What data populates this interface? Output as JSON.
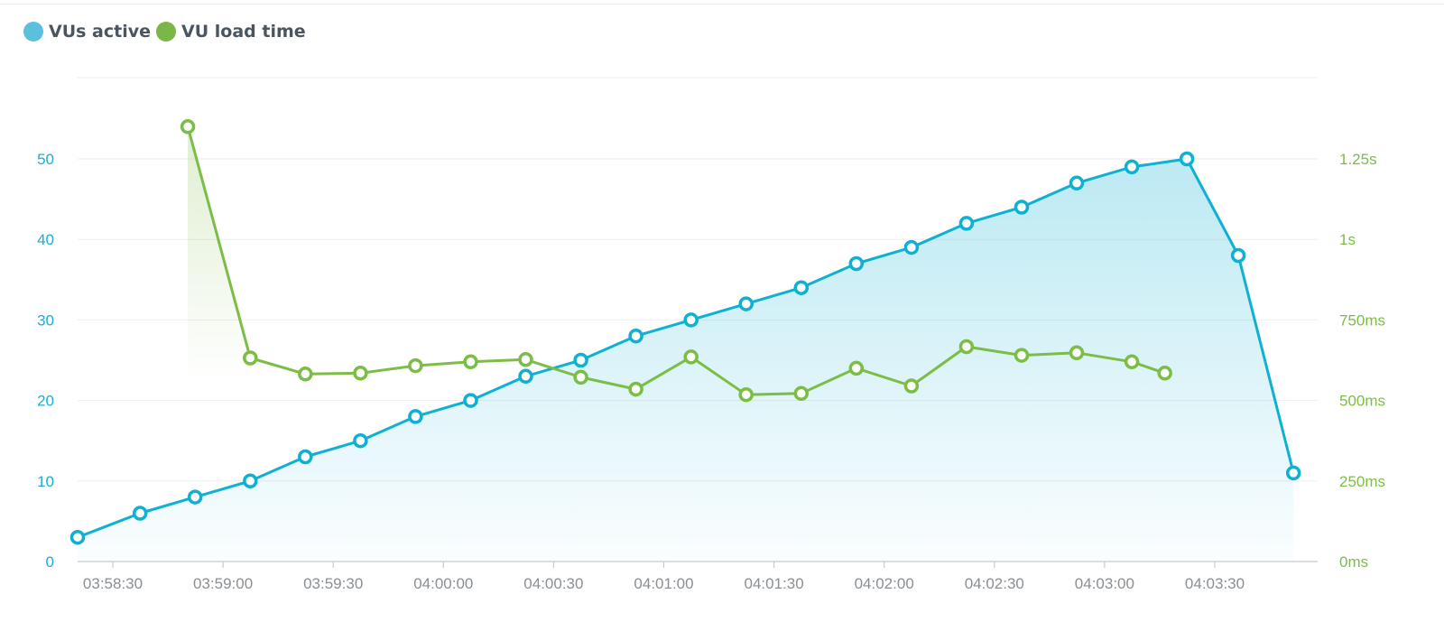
{
  "legend": {
    "items": [
      {
        "label": "VUs active",
        "color": "#5bc0de"
      },
      {
        "label": "VU load time",
        "color": "#7ab648"
      }
    ]
  },
  "colors": {
    "vus_line": "#0fb1d3",
    "load_line": "#7cbd46",
    "left_axis_text": "#1ab0d3",
    "right_axis_text": "#7cbd46",
    "x_axis_text": "#8a8f95",
    "grid": "#eeeeee"
  },
  "chart_data": {
    "type": "line",
    "title": "",
    "xlabel": "",
    "x_ticks": [
      "03:58:30",
      "03:59:00",
      "03:59:30",
      "04:00:00",
      "04:00:30",
      "04:01:00",
      "04:01:30",
      "04:02:00",
      "04:02:30",
      "04:03:00",
      "04:03:30"
    ],
    "y_left": {
      "ticks": [
        "0",
        "10",
        "20",
        "30",
        "40",
        "50"
      ],
      "range": [
        0,
        60
      ]
    },
    "y_right": {
      "ticks": [
        "0ms",
        "250ms",
        "500ms",
        "750ms",
        "1s",
        "1.25s"
      ],
      "range_ms": [
        0,
        1500
      ]
    },
    "series": [
      {
        "name": "VUs active",
        "axis": "left",
        "area": true,
        "points": [
          [
            "03:58:30",
            3
          ],
          [
            "03:58:47",
            6
          ],
          [
            "03:59:02",
            8
          ],
          [
            "03:59:17",
            10
          ],
          [
            "03:59:32",
            13
          ],
          [
            "03:59:47",
            15
          ],
          [
            "04:00:02",
            18
          ],
          [
            "04:00:17",
            20
          ],
          [
            "04:00:32",
            23
          ],
          [
            "04:00:47",
            25
          ],
          [
            "04:01:02",
            28
          ],
          [
            "04:01:17",
            30
          ],
          [
            "04:01:32",
            32
          ],
          [
            "04:01:47",
            34
          ],
          [
            "04:02:02",
            37
          ],
          [
            "04:02:17",
            39
          ],
          [
            "04:02:32",
            42
          ],
          [
            "04:02:47",
            44
          ],
          [
            "04:03:02",
            47
          ],
          [
            "04:03:17",
            49
          ],
          [
            "04:03:32",
            50
          ],
          [
            "04:03:46",
            38
          ],
          [
            "04:04:01",
            11
          ]
        ]
      },
      {
        "name": "VU load time",
        "axis": "right",
        "area": false,
        "points": [
          [
            "03:59:00",
            1350
          ],
          [
            "03:59:17",
            632
          ],
          [
            "03:59:32",
            582
          ],
          [
            "03:59:47",
            585
          ],
          [
            "04:00:02",
            608
          ],
          [
            "04:00:17",
            620
          ],
          [
            "04:00:32",
            627
          ],
          [
            "04:00:47",
            572
          ],
          [
            "04:01:02",
            535
          ],
          [
            "04:01:17",
            635
          ],
          [
            "04:01:32",
            518
          ],
          [
            "04:01:47",
            522
          ],
          [
            "04:02:02",
            600
          ],
          [
            "04:02:17",
            545
          ],
          [
            "04:02:32",
            667
          ],
          [
            "04:02:47",
            640
          ],
          [
            "04:03:02",
            648
          ],
          [
            "04:03:17",
            620
          ],
          [
            "04:03:26",
            585
          ]
        ]
      }
    ],
    "grid": true,
    "legend_position": "top-left"
  }
}
